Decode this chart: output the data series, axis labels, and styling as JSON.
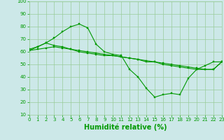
{
  "xlabel": "Humidité relative (%)",
  "background_color": "#cce8e8",
  "grid_color": "#99cc99",
  "line_color": "#009900",
  "xlim": [
    0,
    23
  ],
  "ylim": [
    10,
    100
  ],
  "yticks": [
    10,
    20,
    30,
    40,
    50,
    60,
    70,
    80,
    90,
    100
  ],
  "xticks": [
    0,
    1,
    2,
    3,
    4,
    5,
    6,
    7,
    8,
    9,
    10,
    11,
    12,
    13,
    14,
    15,
    16,
    17,
    18,
    19,
    20,
    21,
    22,
    23
  ],
  "line1_x": [
    0,
    1,
    2,
    3,
    4,
    5,
    6,
    7,
    8,
    9,
    10,
    11,
    12,
    13,
    14,
    15,
    16,
    17,
    18,
    19,
    20,
    21,
    22,
    23
  ],
  "line1_y": [
    62,
    64,
    67,
    71,
    76,
    80,
    82,
    79,
    66,
    60,
    58,
    57,
    46,
    40,
    31,
    24,
    26,
    27,
    26,
    39,
    46,
    49,
    52,
    52
  ],
  "line2_x": [
    0,
    1,
    2,
    3,
    4,
    5,
    6,
    7,
    8,
    9,
    10,
    11,
    12,
    13,
    14,
    15,
    16,
    17,
    18,
    19,
    20,
    21,
    22,
    23
  ],
  "line2_y": [
    61,
    64,
    67,
    65,
    64,
    62,
    60,
    59,
    58,
    57,
    57,
    56,
    55,
    54,
    52,
    52,
    50,
    49,
    48,
    47,
    46,
    46,
    46,
    52
  ],
  "line3_x": [
    0,
    1,
    2,
    3,
    4,
    5,
    6,
    7,
    8,
    9,
    10,
    11,
    12,
    13,
    14,
    15,
    16,
    17,
    18,
    19,
    20,
    21,
    22,
    23
  ],
  "line3_y": [
    61,
    62,
    63,
    64,
    63,
    62,
    61,
    60,
    59,
    58,
    57,
    56,
    55,
    54,
    53,
    52,
    51,
    50,
    49,
    48,
    47,
    46,
    46,
    52
  ],
  "xlabel_fontsize": 7,
  "tick_fontsize": 5,
  "linewidth": 0.8,
  "markersize": 2.0
}
